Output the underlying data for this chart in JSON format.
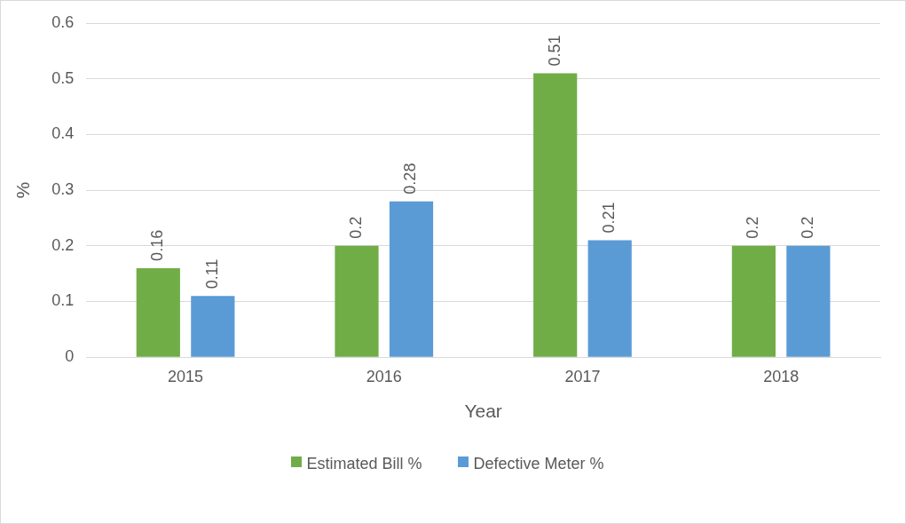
{
  "chart_data": {
    "type": "bar",
    "xlabel": "Year",
    "ylabel": "%",
    "categories": [
      "2015",
      "2016",
      "2017",
      "2018"
    ],
    "series": [
      {
        "name": "Estimated Bill %",
        "color": "#70ad47",
        "values": [
          0.16,
          0.2,
          0.51,
          0.2
        ]
      },
      {
        "name": "Defective Meter %",
        "color": "#5b9bd5",
        "values": [
          0.11,
          0.28,
          0.21,
          0.2
        ]
      }
    ],
    "ylim": [
      0,
      0.6
    ],
    "yticks": [
      0,
      0.1,
      0.2,
      0.3,
      0.4,
      0.5,
      0.6
    ],
    "grid": "y",
    "legend": "bottom",
    "data_labels": true
  }
}
